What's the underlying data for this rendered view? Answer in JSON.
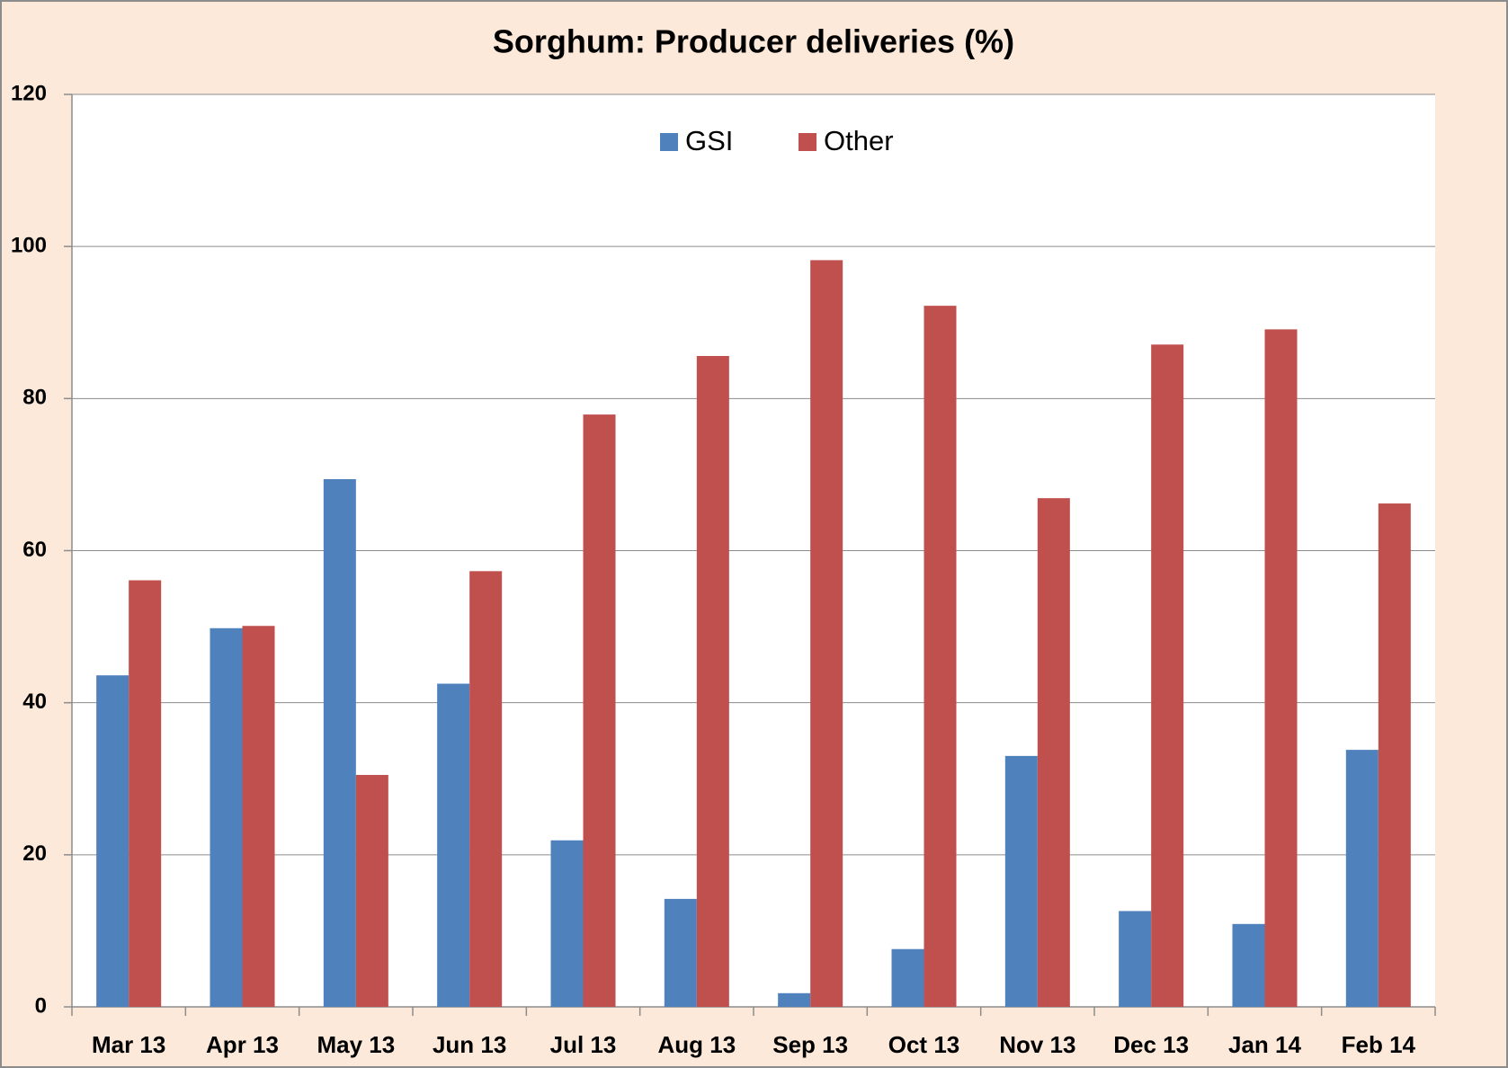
{
  "chart_data": {
    "type": "bar",
    "title": "Sorghum: Producer deliveries (%)",
    "categories": [
      "Mar 13",
      "Apr 13",
      "May 13",
      "Jun 13",
      "Jul 13",
      "Aug 13",
      "Sep 13",
      "Oct 13",
      "Nov 13",
      "Dec 13",
      "Jan 14",
      "Feb 14"
    ],
    "series": [
      {
        "name": "GSI",
        "color": "#4f81bd",
        "values": [
          43.6,
          49.8,
          69.4,
          42.5,
          21.9,
          14.2,
          1.8,
          7.6,
          33.0,
          12.6,
          10.9,
          33.8
        ]
      },
      {
        "name": "Other",
        "color": "#c0504d",
        "values": [
          56.1,
          50.1,
          30.5,
          57.3,
          77.9,
          85.6,
          98.2,
          92.2,
          66.9,
          87.1,
          89.1,
          66.2
        ]
      }
    ],
    "ylim": [
      0,
      120
    ],
    "yticks": [
      0,
      20,
      40,
      60,
      80,
      100,
      120
    ],
    "grid": true,
    "legend": "top"
  }
}
